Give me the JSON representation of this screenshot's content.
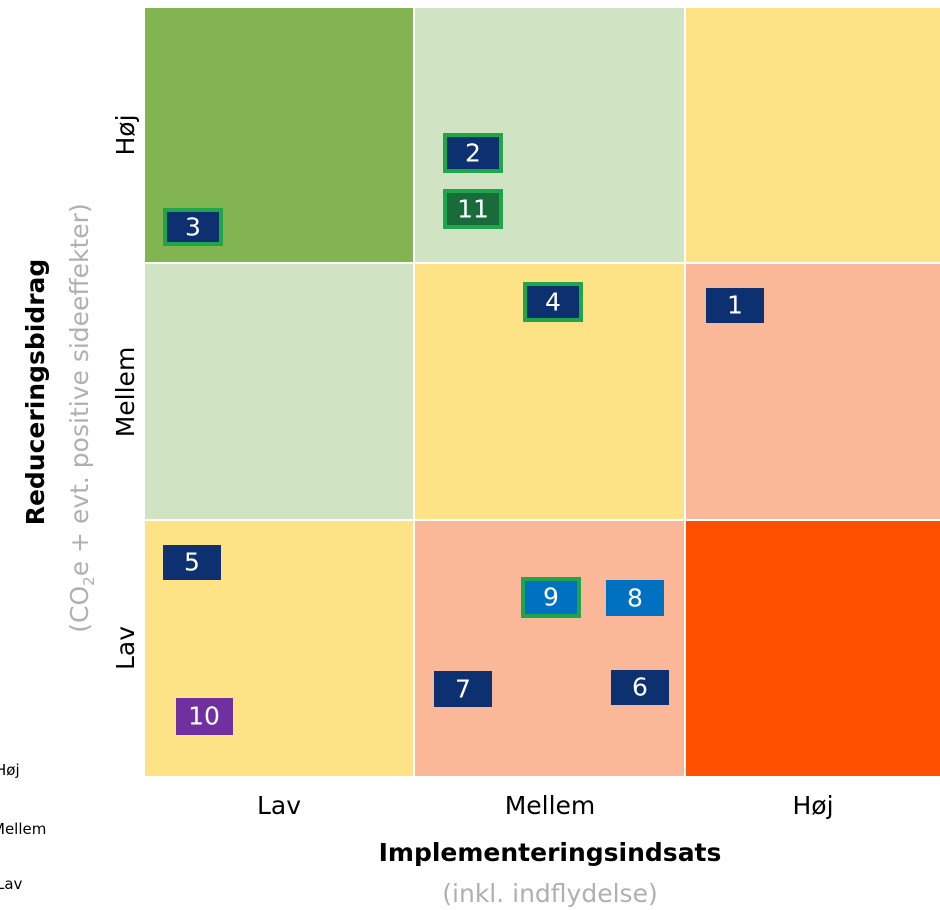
{
  "y_axis": {
    "title": "Reduceringsbidrag",
    "subtitle_parts": [
      "(CO",
      "2",
      "e + evt. positive sideeffekter)"
    ],
    "levels": [
      "Høj",
      "Mellem",
      "Lav"
    ]
  },
  "x_axis": {
    "title": "Implementeringsindsats",
    "subtitle": "(inkl. indflydelse)",
    "levels": [
      "Lav",
      "Mellem",
      "Høj"
    ]
  },
  "boxes": [
    {
      "label": "3"
    },
    {
      "label": "2"
    },
    {
      "label": "11"
    },
    {
      "label": "4"
    },
    {
      "label": "1"
    },
    {
      "label": "5"
    },
    {
      "label": "9"
    },
    {
      "label": "8"
    },
    {
      "label": "7"
    },
    {
      "label": "6"
    },
    {
      "label": "10"
    }
  ],
  "side_legend": [
    "Høj",
    "Mellem",
    "Lav"
  ]
}
